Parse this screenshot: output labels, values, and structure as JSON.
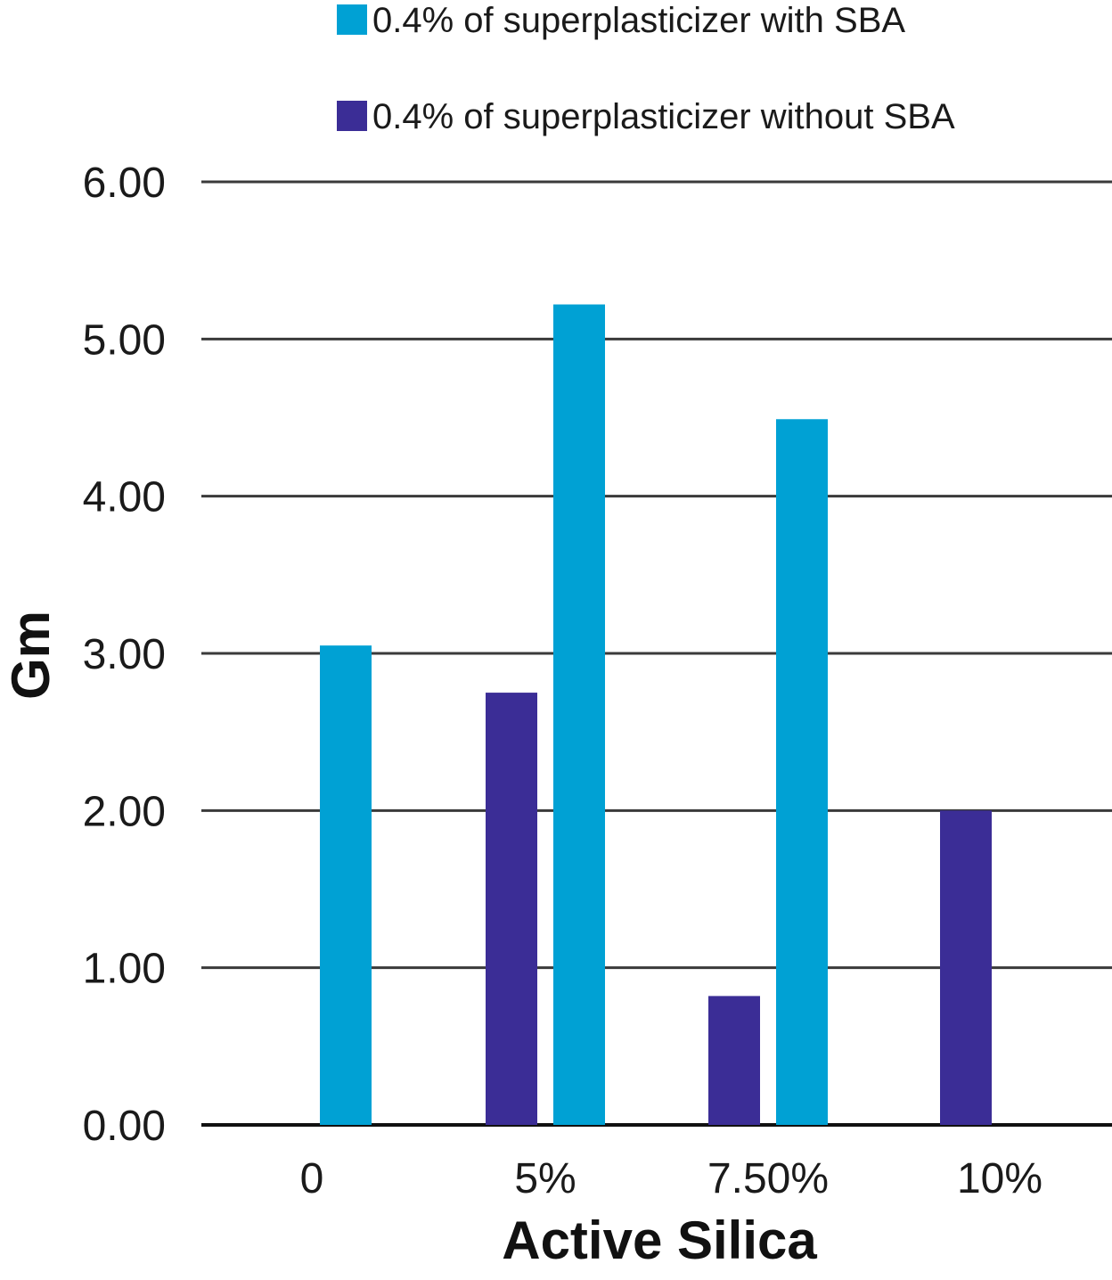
{
  "chart_data": {
    "type": "bar",
    "title": "",
    "xlabel": "Active Silica",
    "ylabel": "Gm",
    "categories": [
      "0",
      "5%",
      "7.50%",
      "10%"
    ],
    "ylim": [
      0,
      6
    ],
    "yticks": [
      "0.00",
      "1.00",
      "2.00",
      "3.00",
      "4.00",
      "5.00",
      "6.00"
    ],
    "grid": true,
    "legend_position": "top",
    "series": [
      {
        "name": "0.4% of superplasticizer without SBA",
        "color": "#3b2d96",
        "values": [
          0,
          2.75,
          0.82,
          2.0
        ]
      },
      {
        "name": "0.4% of superplasticizer with SBA",
        "color": "#00a1d4",
        "values": [
          3.05,
          5.22,
          4.49,
          0
        ]
      }
    ],
    "legend_order": [
      1,
      0
    ]
  }
}
